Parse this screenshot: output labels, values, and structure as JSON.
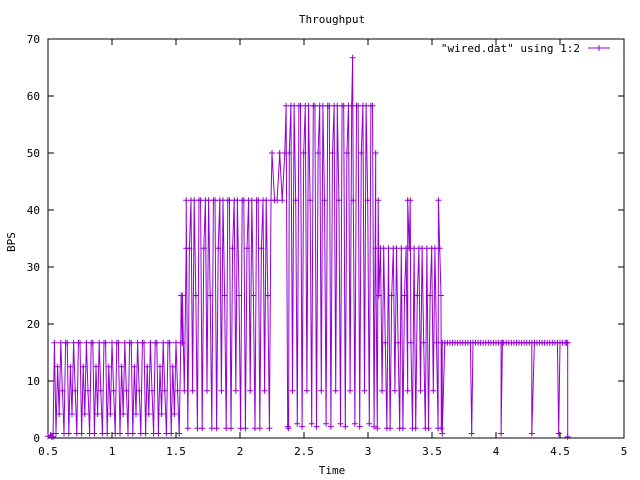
{
  "chart_data": {
    "type": "line",
    "title": "Throughput",
    "xlabel": "Time",
    "ylabel": "BPS",
    "xlim": [
      0.5,
      5
    ],
    "ylim": [
      0,
      70
    ],
    "xticks": [
      0.5,
      1,
      1.5,
      2,
      2.5,
      3,
      3.5,
      4,
      4.5,
      5
    ],
    "xtick_labels": [
      "0.5",
      "1",
      "1.5",
      "2",
      "2.5",
      "3",
      "3.5",
      "4",
      "4.5",
      "5"
    ],
    "yticks": [
      0,
      10,
      20,
      30,
      40,
      50,
      60,
      70
    ],
    "ytick_labels": [
      "0",
      "10",
      "20",
      "30",
      "40",
      "50",
      "60",
      "70"
    ],
    "grid": false,
    "legend_position": "top-right",
    "series": [
      {
        "name": "\"wired.dat\" using 1:2",
        "color": "#9400d3",
        "marker": "plus",
        "segments": [
          {
            "x_start": 0.5,
            "x_end": 0.54,
            "step": 0.02,
            "levels": [
              0.3,
              0.5,
              0.2
            ]
          },
          {
            "x_start": 0.55,
            "x_end": 1.55,
            "step": 0.0125,
            "levels": [
              16.7,
              0.8,
              12.5,
              4.2,
              16.7,
              8.3,
              0.8,
              16.7
            ]
          },
          {
            "x_start": 1.55,
            "x_end": 1.58,
            "step": 0.015,
            "levels": [
              25.0,
              8.3,
              33.3
            ]
          },
          {
            "x_start": 1.58,
            "x_end": 2.25,
            "step": 0.0125,
            "levels": [
              41.7,
              1.7,
              33.3,
              41.7,
              8.3,
              41.7,
              25.0,
              1.7,
              41.7
            ]
          },
          {
            "x_start": 2.25,
            "x_end": 2.36,
            "step": 0.02,
            "levels": [
              50.0,
              41.7,
              41.7,
              50.0,
              41.7,
              50.0
            ]
          },
          {
            "x_start": 2.36,
            "x_end": 3.06,
            "step": 0.0125,
            "levels": [
              58.3,
              2.0,
              50.0,
              58.3,
              8.3,
              58.3,
              41.7,
              2.5,
              58.3
            ]
          },
          {
            "x_start": 3.06,
            "x_end": 3.58,
            "step": 0.0125,
            "levels": [
              33.3,
              1.7,
              25.0,
              33.3,
              8.3,
              33.3,
              16.7,
              1.7
            ]
          },
          {
            "x_start": 3.58,
            "x_end": 4.56,
            "step": 0.02,
            "levels": [
              16.7,
              16.7,
              16.7,
              16.7,
              16.7,
              16.7
            ]
          }
        ],
        "extra_points": [
          {
            "x": 0.53,
            "y": 0.2
          },
          {
            "x": 0.54,
            "y": 0.8
          },
          {
            "x": 1.54,
            "y": 25.0
          },
          {
            "x": 2.38,
            "y": 1.7
          },
          {
            "x": 2.88,
            "y": 66.7
          },
          {
            "x": 3.08,
            "y": 41.7
          },
          {
            "x": 3.31,
            "y": 41.7
          },
          {
            "x": 3.33,
            "y": 41.7
          },
          {
            "x": 3.55,
            "y": 41.7
          },
          {
            "x": 3.57,
            "y": 25.0
          },
          {
            "x": 3.58,
            "y": 0.8
          },
          {
            "x": 3.81,
            "y": 0.8
          },
          {
            "x": 3.82,
            "y": 16.7
          },
          {
            "x": 4.04,
            "y": 0.8
          },
          {
            "x": 4.05,
            "y": 16.7
          },
          {
            "x": 4.28,
            "y": 0.8
          },
          {
            "x": 4.3,
            "y": 16.7
          },
          {
            "x": 4.49,
            "y": 0.8
          },
          {
            "x": 4.5,
            "y": 16.7
          },
          {
            "x": 4.55,
            "y": 16.7
          },
          {
            "x": 4.56,
            "y": 0.2
          }
        ]
      }
    ]
  }
}
